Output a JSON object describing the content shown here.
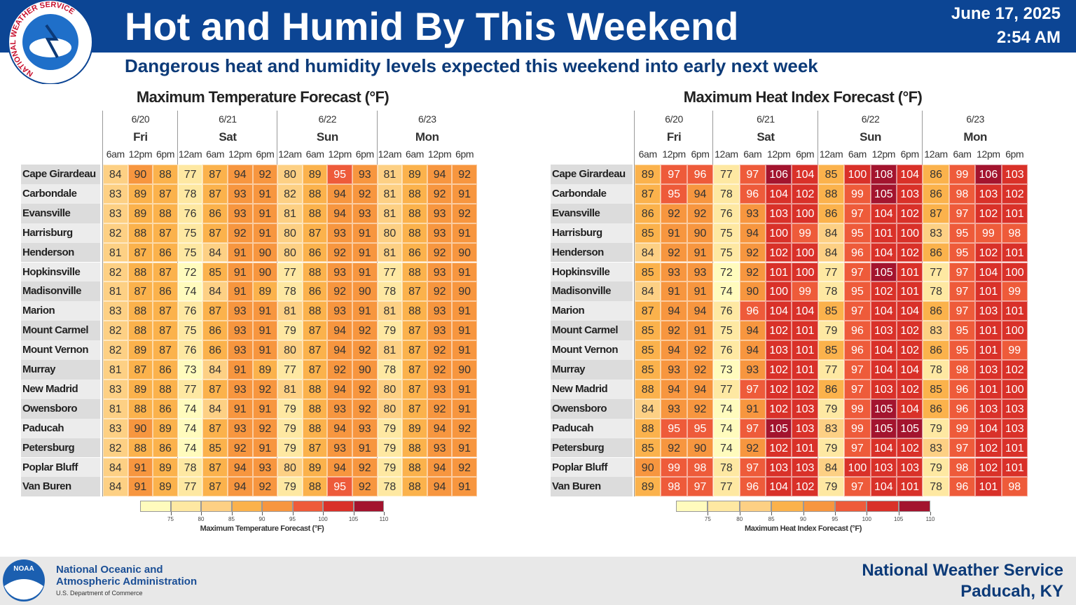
{
  "header": {
    "title": "Hot and Humid By This Weekend",
    "subtitle": "Dangerous heat and humidity levels expected this weekend into early next week",
    "date": "June 17, 2025",
    "time": "2:54 AM",
    "logo_text": "NATIONAL WEATHER SERVICE"
  },
  "tables": [
    {
      "title": "Maximum Temperature Forecast (°F)",
      "days": [
        {
          "date": "6/20",
          "day": "Fri",
          "hours": [
            "6am",
            "12pm",
            "6pm"
          ]
        },
        {
          "date": "6/21",
          "day": "Sat",
          "hours": [
            "12am",
            "6am",
            "12pm",
            "6pm"
          ]
        },
        {
          "date": "6/22",
          "day": "Sun",
          "hours": [
            "12am",
            "6am",
            "12pm",
            "6pm"
          ]
        },
        {
          "date": "6/23",
          "day": "Mon",
          "hours": [
            "12am",
            "6am",
            "12pm",
            "6pm"
          ]
        }
      ],
      "rows": [
        {
          "name": "Cape Girardeau",
          "values": [
            84,
            90,
            88,
            77,
            87,
            94,
            92,
            80,
            89,
            95,
            93,
            81,
            89,
            94,
            92
          ]
        },
        {
          "name": "Carbondale",
          "values": [
            83,
            89,
            87,
            78,
            87,
            93,
            91,
            82,
            88,
            94,
            92,
            81,
            88,
            92,
            91
          ]
        },
        {
          "name": "Evansville",
          "values": [
            83,
            89,
            88,
            76,
            86,
            93,
            91,
            81,
            88,
            94,
            93,
            81,
            88,
            93,
            92
          ]
        },
        {
          "name": "Harrisburg",
          "values": [
            82,
            88,
            87,
            75,
            87,
            92,
            91,
            80,
            87,
            93,
            91,
            80,
            88,
            93,
            91
          ]
        },
        {
          "name": "Henderson",
          "values": [
            81,
            87,
            86,
            75,
            84,
            91,
            90,
            80,
            86,
            92,
            91,
            81,
            86,
            92,
            90
          ]
        },
        {
          "name": "Hopkinsville",
          "values": [
            82,
            88,
            87,
            72,
            85,
            91,
            90,
            77,
            88,
            93,
            91,
            77,
            88,
            93,
            91
          ]
        },
        {
          "name": "Madisonville",
          "values": [
            81,
            87,
            86,
            74,
            84,
            91,
            89,
            78,
            86,
            92,
            90,
            78,
            87,
            92,
            90
          ]
        },
        {
          "name": "Marion",
          "values": [
            83,
            88,
            87,
            76,
            87,
            93,
            91,
            81,
            88,
            93,
            91,
            81,
            88,
            93,
            91
          ]
        },
        {
          "name": "Mount Carmel",
          "values": [
            82,
            88,
            87,
            75,
            86,
            93,
            91,
            79,
            87,
            94,
            92,
            79,
            87,
            93,
            91
          ]
        },
        {
          "name": "Mount Vernon",
          "values": [
            82,
            89,
            87,
            76,
            86,
            93,
            91,
            80,
            87,
            94,
            92,
            81,
            87,
            92,
            91
          ]
        },
        {
          "name": "Murray",
          "values": [
            81,
            87,
            86,
            73,
            84,
            91,
            89,
            77,
            87,
            92,
            90,
            78,
            87,
            92,
            90
          ]
        },
        {
          "name": "New Madrid",
          "values": [
            83,
            89,
            88,
            77,
            87,
            93,
            92,
            81,
            88,
            94,
            92,
            80,
            87,
            93,
            91
          ]
        },
        {
          "name": "Owensboro",
          "values": [
            81,
            88,
            86,
            74,
            84,
            91,
            91,
            79,
            88,
            93,
            92,
            80,
            87,
            92,
            91
          ]
        },
        {
          "name": "Paducah",
          "values": [
            83,
            90,
            89,
            74,
            87,
            93,
            92,
            79,
            88,
            94,
            93,
            79,
            89,
            94,
            92
          ]
        },
        {
          "name": "Petersburg",
          "values": [
            82,
            88,
            86,
            74,
            85,
            92,
            91,
            79,
            87,
            93,
            91,
            79,
            88,
            93,
            91
          ]
        },
        {
          "name": "Poplar Bluff",
          "values": [
            84,
            91,
            89,
            78,
            87,
            94,
            93,
            80,
            89,
            94,
            92,
            79,
            88,
            94,
            92
          ]
        },
        {
          "name": "Van Buren",
          "values": [
            84,
            91,
            89,
            77,
            87,
            94,
            92,
            79,
            88,
            95,
            92,
            78,
            88,
            94,
            91
          ]
        }
      ],
      "scale": {
        "label": "Maximum Temperature Forecast (°F)",
        "ticks": [
          75,
          80,
          85,
          90,
          95,
          100,
          105,
          110
        ],
        "colors": [
          "#fffbbd",
          "#fee8a2",
          "#fdd084",
          "#fbb24c",
          "#f7963f",
          "#ee5b3a",
          "#d93129",
          "#a3142e"
        ]
      }
    },
    {
      "title": "Maximum Heat Index Forecast (°F)",
      "days": [
        {
          "date": "6/20",
          "day": "Fri",
          "hours": [
            "6am",
            "12pm",
            "6pm"
          ]
        },
        {
          "date": "6/21",
          "day": "Sat",
          "hours": [
            "12am",
            "6am",
            "12pm",
            "6pm"
          ]
        },
        {
          "date": "6/22",
          "day": "Sun",
          "hours": [
            "12am",
            "6am",
            "12pm",
            "6pm"
          ]
        },
        {
          "date": "6/23",
          "day": "Mon",
          "hours": [
            "12am",
            "6am",
            "12pm",
            "6pm"
          ]
        }
      ],
      "rows": [
        {
          "name": "Cape Girardeau",
          "values": [
            89,
            97,
            96,
            77,
            97,
            106,
            104,
            85,
            100,
            108,
            104,
            86,
            99,
            106,
            103
          ]
        },
        {
          "name": "Carbondale",
          "values": [
            87,
            95,
            94,
            78,
            96,
            104,
            102,
            88,
            99,
            105,
            103,
            86,
            98,
            103,
            102
          ]
        },
        {
          "name": "Evansville",
          "values": [
            86,
            92,
            92,
            76,
            93,
            103,
            100,
            86,
            97,
            104,
            102,
            87,
            97,
            102,
            101
          ]
        },
        {
          "name": "Harrisburg",
          "values": [
            85,
            91,
            90,
            75,
            94,
            100,
            99,
            84,
            95,
            101,
            100,
            83,
            95,
            99,
            98
          ]
        },
        {
          "name": "Henderson",
          "values": [
            84,
            92,
            91,
            75,
            92,
            102,
            100,
            84,
            96,
            104,
            102,
            86,
            95,
            102,
            101
          ]
        },
        {
          "name": "Hopkinsville",
          "values": [
            85,
            93,
            93,
            72,
            92,
            101,
            100,
            77,
            97,
            105,
            101,
            77,
            97,
            104,
            100
          ]
        },
        {
          "name": "Madisonville",
          "values": [
            84,
            91,
            91,
            74,
            90,
            100,
            99,
            78,
            95,
            102,
            101,
            78,
            97,
            101,
            99
          ]
        },
        {
          "name": "Marion",
          "values": [
            87,
            94,
            94,
            76,
            96,
            104,
            104,
            85,
            97,
            104,
            104,
            86,
            97,
            103,
            101
          ]
        },
        {
          "name": "Mount Carmel",
          "values": [
            85,
            92,
            91,
            75,
            94,
            102,
            101,
            79,
            96,
            103,
            102,
            83,
            95,
            101,
            100
          ]
        },
        {
          "name": "Mount Vernon",
          "values": [
            85,
            94,
            92,
            76,
            94,
            103,
            101,
            85,
            96,
            104,
            102,
            86,
            95,
            101,
            99
          ]
        },
        {
          "name": "Murray",
          "values": [
            85,
            93,
            92,
            73,
            93,
            102,
            101,
            77,
            97,
            104,
            104,
            78,
            98,
            103,
            102
          ]
        },
        {
          "name": "New Madrid",
          "values": [
            88,
            94,
            94,
            77,
            97,
            102,
            102,
            86,
            97,
            103,
            102,
            85,
            96,
            101,
            100
          ]
        },
        {
          "name": "Owensboro",
          "values": [
            84,
            93,
            92,
            74,
            91,
            102,
            103,
            79,
            99,
            105,
            104,
            86,
            96,
            103,
            103
          ]
        },
        {
          "name": "Paducah",
          "values": [
            88,
            95,
            95,
            74,
            97,
            105,
            103,
            83,
            99,
            105,
            105,
            79,
            99,
            104,
            103
          ]
        },
        {
          "name": "Petersburg",
          "values": [
            85,
            92,
            90,
            74,
            92,
            102,
            101,
            79,
            97,
            104,
            102,
            83,
            97,
            102,
            101
          ]
        },
        {
          "name": "Poplar Bluff",
          "values": [
            90,
            99,
            98,
            78,
            97,
            103,
            103,
            84,
            100,
            103,
            103,
            79,
            98,
            102,
            101
          ]
        },
        {
          "name": "Van Buren",
          "values": [
            89,
            98,
            97,
            77,
            96,
            104,
            102,
            79,
            97,
            104,
            101,
            78,
            96,
            101,
            98
          ]
        }
      ],
      "scale": {
        "label": "Maximum Heat Index Forecast (°F)",
        "ticks": [
          75,
          80,
          85,
          90,
          95,
          100,
          105,
          110
        ],
        "colors": [
          "#fffbbd",
          "#fee8a2",
          "#fdd084",
          "#fbb24c",
          "#f7963f",
          "#ee5b3a",
          "#d93129",
          "#a3142e"
        ]
      }
    }
  ],
  "footer": {
    "badge": "NOAA",
    "agency_line1": "National Oceanic and",
    "agency_line2": "Atmospheric Administration",
    "department": "U.S. Department of Commerce",
    "office_line1": "National Weather Service",
    "office_line2": "Paducah, KY"
  }
}
